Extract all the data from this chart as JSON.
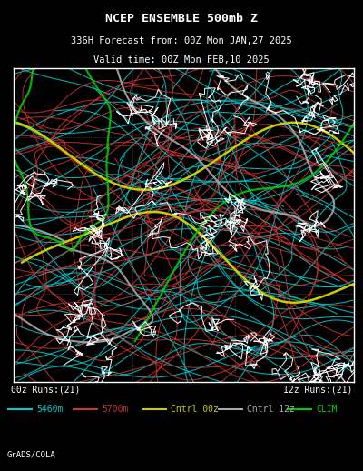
{
  "title1": "NCEP ENSEMBLE 500mb Z",
  "title2": "336H Forecast from: 00Z Mon JAN,27 2025",
  "title3": "Valid time: 00Z Mon FEB,10 2025",
  "label_00z": "00z Runs:(21)",
  "label_12z": "12z Runs:(21)",
  "footer": "GrADS/COLA",
  "bg_color": "#000000",
  "map_bg": "#000000",
  "title_color": "#ffffff",
  "text_color": "#ffffff",
  "map_frame_color": "#ffffff",
  "cyan_color": "#00cccc",
  "red_color": "#cc3333",
  "yellow_color": "#cccc00",
  "gray_color": "#aaaaaa",
  "green_color": "#00cc00",
  "white_color": "#ffffff",
  "dotted_color": "#888888",
  "legend_items": [
    {
      "label": "5460m",
      "color": "#00cccc",
      "lw": 1.5
    },
    {
      "label": "5700m",
      "color": "#cc3333",
      "lw": 1.5
    },
    {
      "label": "Cntrl 00z",
      "color": "#cccc00",
      "lw": 1.5
    },
    {
      "label": "Cntrl 12z",
      "color": "#aaaaaa",
      "lw": 1.5
    },
    {
      "label": "CLIM",
      "color": "#00cc00",
      "lw": 1.5
    }
  ],
  "title1_fontsize": 9.5,
  "title2_fontsize": 7.5,
  "title3_fontsize": 7.5,
  "label_fontsize": 7.0,
  "legend_fontsize": 7.0,
  "footer_fontsize": 6.5
}
